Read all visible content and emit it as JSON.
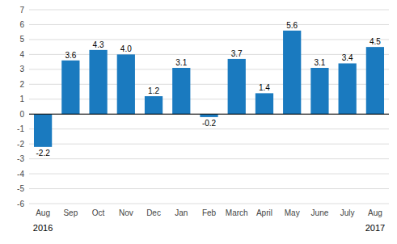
{
  "chart_data": {
    "type": "bar",
    "categories": [
      "Aug",
      "Sep",
      "Oct",
      "Nov",
      "Dec",
      "Jan",
      "Feb",
      "March",
      "April",
      "May",
      "June",
      "July",
      "Aug"
    ],
    "values": [
      -2.2,
      3.6,
      4.3,
      4.0,
      1.2,
      3.1,
      -0.2,
      3.7,
      1.4,
      5.6,
      3.1,
      3.4,
      4.5
    ],
    "value_labels": [
      "-2.2",
      "3.6",
      "4.3",
      "4.0",
      "1.2",
      "3.1",
      "-0.2",
      "3.7",
      "1.4",
      "5.6",
      "3.1",
      "3.4",
      "4.5"
    ],
    "data_labels": true,
    "color": "#1a7abf",
    "ylim": [
      -6,
      7
    ],
    "yticks": [
      -6,
      -5,
      -4,
      -3,
      -2,
      -1,
      0,
      1,
      2,
      3,
      4,
      5,
      6,
      7
    ],
    "grid": true,
    "annotations": [
      {
        "text": "2016",
        "index": 0
      },
      {
        "text": "2017",
        "index": 12
      }
    ]
  }
}
